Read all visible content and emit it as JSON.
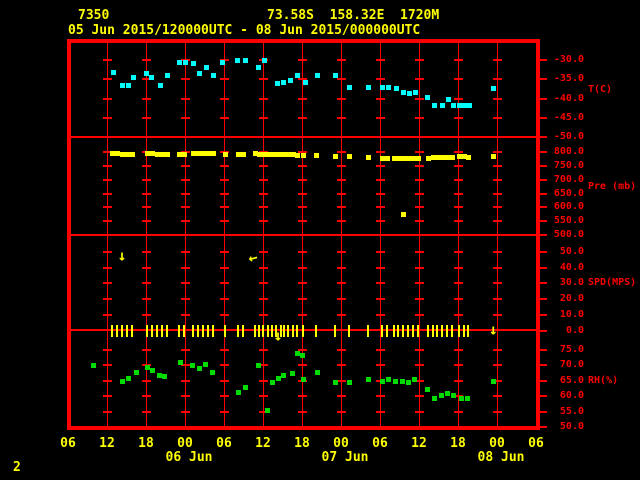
{
  "header": {
    "station_id": "7350",
    "location": "73.58S  158.32E  1720M",
    "time_range": "05 Jun 2015/120000UTC - 08 Jun 2015/000000UTC"
  },
  "footer": {
    "page_number": "2"
  },
  "colors": {
    "background": "#000000",
    "grid": "#ff0000",
    "text_yellow": "#ffff00",
    "temperature": "#00ffff",
    "pressure": "#ffff00",
    "wind": "#ffff00",
    "humidity": "#00dc00"
  },
  "x_axis": {
    "hours_span_note": "hours since 05 Jun 2015 00UTC, axis spans 06h to 78h",
    "hour_labels": [
      {
        "hour": 6,
        "text": "06"
      },
      {
        "hour": 12,
        "text": "12"
      },
      {
        "hour": 18,
        "text": "18"
      },
      {
        "hour": 24,
        "text": "00"
      },
      {
        "hour": 30,
        "text": "06"
      },
      {
        "hour": 36,
        "text": "12"
      },
      {
        "hour": 42,
        "text": "18"
      },
      {
        "hour": 48,
        "text": "00"
      },
      {
        "hour": 54,
        "text": "06"
      },
      {
        "hour": 60,
        "text": "12"
      },
      {
        "hour": 66,
        "text": "18"
      },
      {
        "hour": 72,
        "text": "00"
      },
      {
        "hour": 78,
        "text": "06"
      }
    ],
    "date_labels": [
      {
        "hour": 24,
        "text": "06 Jun"
      },
      {
        "hour": 48,
        "text": "07 Jun"
      },
      {
        "hour": 72,
        "text": "08 Jun"
      }
    ]
  },
  "chart_data": [
    {
      "id": "temperature",
      "type": "scatter",
      "ylabel": "T(C)",
      "ylabel_y": 90,
      "marker_color": "#00ffff",
      "ylim": [
        -52.5,
        -27.5
      ],
      "yticks": [
        -30,
        -35,
        -40,
        -45,
        -50
      ],
      "ytick_labels": [
        "-30.0",
        "-35.0",
        "-40.0",
        "-45.0",
        "-50.0"
      ],
      "points": [
        [
          12.9,
          -33.0
        ],
        [
          14.3,
          -36.6
        ],
        [
          15.2,
          -36.4
        ],
        [
          16.0,
          -34.3
        ],
        [
          18.0,
          -33.5
        ],
        [
          18.8,
          -34.5
        ],
        [
          20.2,
          -36.6
        ],
        [
          21.2,
          -34.0
        ],
        [
          23.1,
          -30.6
        ],
        [
          24.0,
          -30.4
        ],
        [
          25.2,
          -30.9
        ],
        [
          26.2,
          -33.5
        ],
        [
          27.2,
          -31.9
        ],
        [
          28.3,
          -33.8
        ],
        [
          29.7,
          -30.4
        ],
        [
          32.0,
          -29.9
        ],
        [
          33.2,
          -30.1
        ],
        [
          35.2,
          -31.9
        ],
        [
          36.2,
          -29.9
        ],
        [
          38.2,
          -36.1
        ],
        [
          39.1,
          -35.8
        ],
        [
          40.2,
          -35.1
        ],
        [
          41.2,
          -33.8
        ],
        [
          42.5,
          -35.8
        ],
        [
          44.3,
          -34.0
        ],
        [
          47.1,
          -33.8
        ],
        [
          49.2,
          -36.9
        ],
        [
          52.2,
          -37.1
        ],
        [
          54.3,
          -37.1
        ],
        [
          55.2,
          -37.1
        ],
        [
          56.5,
          -37.4
        ],
        [
          57.5,
          -38.2
        ],
        [
          58.5,
          -38.7
        ],
        [
          59.4,
          -38.4
        ],
        [
          61.2,
          -39.7
        ],
        [
          62.3,
          -41.8
        ],
        [
          63.5,
          -41.6
        ],
        [
          64.5,
          -40.0
        ],
        [
          65.2,
          -41.8
        ],
        [
          66.2,
          -41.6
        ],
        [
          66.9,
          -41.8
        ],
        [
          67.7,
          -41.8
        ],
        [
          71.4,
          -37.4
        ]
      ]
    },
    {
      "id": "pressure",
      "type": "scatter",
      "ylabel": "Pre (mb)",
      "ylabel_y": 187,
      "marker_color": "#ffff00",
      "ylim": [
        500,
        850
      ],
      "yticks": [
        800,
        750,
        700,
        650,
        600,
        550,
        500
      ],
      "ytick_labels": [
        "800.0",
        "750.0",
        "700.0",
        "650.0",
        "600.0",
        "550.0",
        "500.0"
      ],
      "points": [
        [
          12.8,
          796
        ],
        [
          13.5,
          795
        ],
        [
          14.3,
          794
        ],
        [
          15.1,
          794
        ],
        [
          15.8,
          793
        ],
        [
          18.2,
          796
        ],
        [
          18.9,
          795
        ],
        [
          19.7,
          794
        ],
        [
          20.5,
          794
        ],
        [
          21.2,
          793
        ],
        [
          23.1,
          794
        ],
        [
          23.8,
          793
        ],
        [
          25.2,
          798
        ],
        [
          26.0,
          797
        ],
        [
          26.8,
          797
        ],
        [
          27.5,
          796
        ],
        [
          28.3,
          795
        ],
        [
          30.2,
          794
        ],
        [
          32.2,
          792
        ],
        [
          32.9,
          792
        ],
        [
          34.8,
          795
        ],
        [
          35.4,
          794
        ],
        [
          36.0,
          794
        ],
        [
          36.8,
          793
        ],
        [
          37.4,
          793
        ],
        [
          38.0,
          793
        ],
        [
          38.8,
          792
        ],
        [
          39.2,
          792
        ],
        [
          39.8,
          792
        ],
        [
          40.6,
          791
        ],
        [
          41.2,
          790
        ],
        [
          42.1,
          789
        ],
        [
          44.2,
          788
        ],
        [
          47.1,
          787
        ],
        [
          49.2,
          785
        ],
        [
          52.2,
          781
        ],
        [
          54.3,
          780
        ],
        [
          55.1,
          780
        ],
        [
          56.2,
          780
        ],
        [
          56.8,
          779
        ],
        [
          57.5,
          779
        ],
        [
          58.3,
          778
        ],
        [
          59.1,
          778
        ],
        [
          59.8,
          779
        ],
        [
          61.4,
          780
        ],
        [
          62.2,
          781
        ],
        [
          62.8,
          781
        ],
        [
          63.5,
          782
        ],
        [
          64.3,
          782
        ],
        [
          65.1,
          783
        ],
        [
          66.2,
          784
        ],
        [
          66.9,
          784
        ],
        [
          67.5,
          783
        ],
        [
          71.4,
          784
        ],
        [
          57.5,
          575
        ]
      ]
    },
    {
      "id": "wind",
      "type": "scatter",
      "ylabel": "SPD(MPS)",
      "ylabel_y": 283,
      "marker_color": "#ffff00",
      "ylim": [
        0,
        60
      ],
      "yticks": [
        50,
        40,
        30,
        20,
        10,
        0
      ],
      "ytick_labels": [
        "50.0",
        "40.0",
        "30.0",
        "20.0",
        "10.0",
        "0.0"
      ],
      "staff_value": 0,
      "staff_hours": [
        12.8,
        13.5,
        14.3,
        15.1,
        15.8,
        18.2,
        18.9,
        19.7,
        20.5,
        21.2,
        23.1,
        23.8,
        25.2,
        26.0,
        26.8,
        27.5,
        28.3,
        30.2,
        32.2,
        32.9,
        34.8,
        35.4,
        36.0,
        36.8,
        37.4,
        38.0,
        38.8,
        39.2,
        39.8,
        40.6,
        41.2,
        42.1,
        44.2,
        47.1,
        49.2,
        52.2,
        54.3,
        55.1,
        56.2,
        56.8,
        57.5,
        58.3,
        59.1,
        59.8,
        61.4,
        62.2,
        62.8,
        63.5,
        64.3,
        65.1,
        66.2,
        66.9,
        67.5
      ],
      "annotations": [
        {
          "name": "down-arrow",
          "glyph": "↓",
          "hour": 14.3,
          "y": 256,
          "rotate": 0
        },
        {
          "name": "left-arrow",
          "glyph": "←",
          "hour": 34.4,
          "y": 258,
          "rotate": -14
        },
        {
          "name": "down-arrow",
          "glyph": "↓",
          "hour": 38.3,
          "y": 336,
          "rotate": 0
        },
        {
          "name": "down-arrow",
          "glyph": "↓",
          "hour": 71.4,
          "y": 330,
          "rotate": 0
        }
      ]
    },
    {
      "id": "humidity",
      "type": "scatter",
      "ylabel": "RH(%)",
      "ylabel_y": 381,
      "marker_color": "#00dc00",
      "ylim": [
        50,
        77.5
      ],
      "yticks": [
        75,
        70,
        65,
        60,
        55,
        50
      ],
      "ytick_labels": [
        "75.0",
        "70.0",
        "65.0",
        "60.0",
        "55.0",
        "50.0"
      ],
      "points": [
        [
          9.8,
          70.0
        ],
        [
          14.3,
          65.0
        ],
        [
          15.3,
          66.0
        ],
        [
          16.5,
          68.0
        ],
        [
          18.2,
          69.5
        ],
        [
          18.9,
          68.5
        ],
        [
          20.0,
          67.0
        ],
        [
          20.8,
          66.5
        ],
        [
          23.2,
          71.0
        ],
        [
          25.1,
          70.0
        ],
        [
          26.2,
          69.0
        ],
        [
          27.1,
          70.5
        ],
        [
          28.2,
          68.0
        ],
        [
          32.2,
          61.5
        ],
        [
          33.2,
          63.0
        ],
        [
          35.2,
          70.0
        ],
        [
          36.6,
          55.5
        ],
        [
          37.4,
          64.5
        ],
        [
          38.3,
          66.0
        ],
        [
          39.1,
          67.0
        ],
        [
          40.5,
          67.5
        ],
        [
          41.2,
          74.0
        ],
        [
          42.0,
          73.5
        ],
        [
          42.2,
          65.5
        ],
        [
          44.3,
          68.0
        ],
        [
          47.1,
          64.5
        ],
        [
          49.2,
          64.5
        ],
        [
          52.2,
          65.5
        ],
        [
          54.3,
          65.0
        ],
        [
          55.2,
          65.5
        ],
        [
          56.3,
          65.0
        ],
        [
          57.4,
          65.0
        ],
        [
          58.3,
          64.5
        ],
        [
          59.2,
          65.5
        ],
        [
          61.2,
          62.5
        ],
        [
          62.3,
          59.5
        ],
        [
          63.4,
          60.5
        ],
        [
          64.3,
          61.0
        ],
        [
          65.2,
          60.5
        ],
        [
          66.5,
          59.5
        ],
        [
          67.4,
          59.5
        ],
        [
          71.4,
          65.0
        ]
      ]
    }
  ]
}
